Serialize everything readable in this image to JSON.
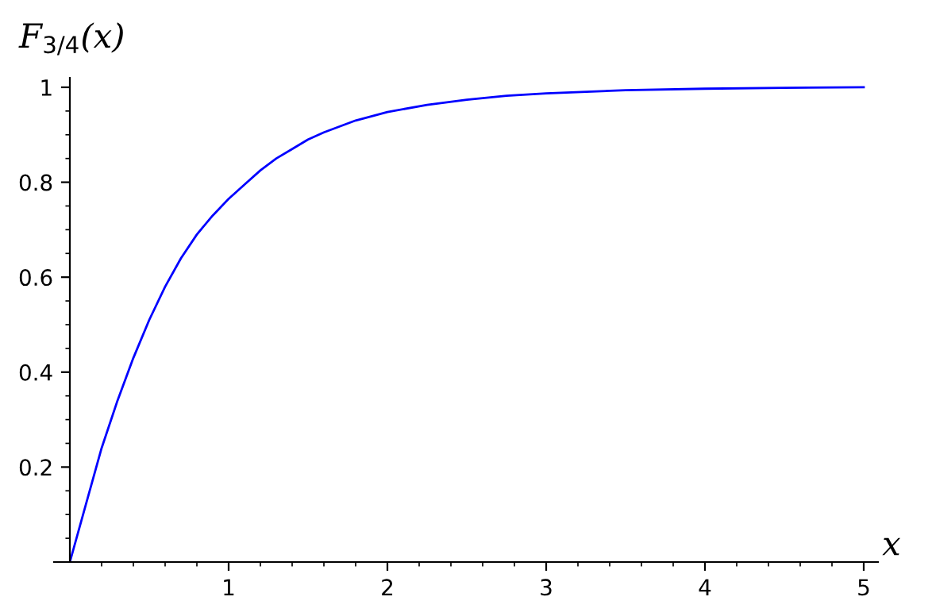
{
  "chart_data": {
    "type": "line",
    "ylabel": "F$_{3/4}$(x)",
    "xlabel": "x",
    "x": [
      0,
      0.1,
      0.2,
      0.3,
      0.4,
      0.5,
      0.6,
      0.7,
      0.8,
      0.9,
      1.0,
      1.1,
      1.2,
      1.3,
      1.4,
      1.5,
      1.6,
      1.8,
      2.0,
      2.25,
      2.5,
      2.75,
      3,
      3.5,
      4,
      4.5,
      5
    ],
    "series": [
      {
        "color": "#0000ff",
        "values": [
          0,
          0.12,
          0.24,
          0.34,
          0.43,
          0.51,
          0.58,
          0.64,
          0.69,
          0.73,
          0.765,
          0.795,
          0.825,
          0.85,
          0.87,
          0.89,
          0.905,
          0.93,
          0.948,
          0.963,
          0.974,
          0.982,
          0.987,
          0.994,
          0.997,
          0.999,
          1.0
        ]
      }
    ],
    "xlim": [
      -0.1,
      5.09
    ],
    "ylim": [
      0,
      1.02
    ],
    "xticks": [
      {
        "value": 0.2,
        "label": null
      },
      {
        "value": 0.4,
        "label": null
      },
      {
        "value": 0.6,
        "label": null
      },
      {
        "value": 0.8,
        "label": null
      },
      1,
      {
        "value": 1.2,
        "label": null
      },
      {
        "value": 1.4,
        "label": null
      },
      {
        "value": 1.6,
        "label": null
      },
      {
        "value": 1.8,
        "label": null
      },
      2,
      {
        "value": 2.2,
        "label": null
      },
      {
        "value": 2.4,
        "label": null
      },
      {
        "value": 2.6,
        "label": null
      },
      {
        "value": 2.8,
        "label": null
      },
      3,
      {
        "value": 3.2,
        "label": null
      },
      {
        "value": 3.4,
        "label": null
      },
      {
        "value": 3.6,
        "label": null
      },
      {
        "value": 3.8,
        "label": null
      },
      4,
      {
        "value": 4.2,
        "label": null
      },
      {
        "value": 4.4,
        "label": null
      },
      {
        "value": 4.6,
        "label": null
      },
      {
        "value": 4.8,
        "label": null
      },
      5
    ],
    "yticks": [
      {
        "value": 0.05,
        "label": null
      },
      {
        "value": 0.1,
        "label": null
      },
      {
        "value": 0.15,
        "label": null
      },
      0.2,
      {
        "value": 0.25,
        "label": null
      },
      {
        "value": 0.3,
        "label": null
      },
      {
        "value": 0.35,
        "label": null
      },
      0.4,
      {
        "value": 0.45,
        "label": null
      },
      {
        "value": 0.5,
        "label": null
      },
      {
        "value": 0.55,
        "label": null
      },
      0.6,
      {
        "value": 0.65,
        "label": null
      },
      {
        "value": 0.7,
        "label": null
      },
      {
        "value": 0.75,
        "label": null
      },
      0.8,
      {
        "value": 0.85,
        "label": null
      },
      {
        "value": 0.9,
        "label": null
      },
      {
        "value": 0.95,
        "label": null
      },
      1
    ],
    "grid": false,
    "marker": "none",
    "line_style": "solid"
  }
}
